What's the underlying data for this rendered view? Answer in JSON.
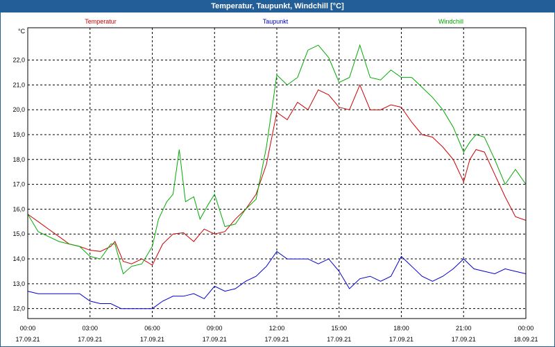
{
  "window": {
    "title": "Temperatur, Taupunkt, Windchill [°C]"
  },
  "chart_data": {
    "type": "line",
    "title": "Temperatur, Taupunkt, Windchill [°C]",
    "ylabel": "°C",
    "ylim": [
      11.6,
      23.3
    ],
    "xlim": [
      0,
      24
    ],
    "grid": true,
    "y_ticks": [
      "12,0",
      "13,0",
      "14,0",
      "15,0",
      "16,0",
      "17,0",
      "18,0",
      "19,0",
      "20,0",
      "21,0",
      "22,0"
    ],
    "x_ticks": [
      {
        "time": "00:00",
        "date": "17.09.21"
      },
      {
        "time": "03:00",
        "date": "17.09.21"
      },
      {
        "time": "06:00",
        "date": "17.09.21"
      },
      {
        "time": "09:00",
        "date": "17.09.21"
      },
      {
        "time": "12:00",
        "date": "17.09.21"
      },
      {
        "time": "15:00",
        "date": "17.09.21"
      },
      {
        "time": "18:00",
        "date": "17.09.21"
      },
      {
        "time": "21:00",
        "date": "17.09.21"
      },
      {
        "time": "00:00",
        "date": "18.09.21"
      }
    ],
    "series": [
      {
        "name": "Temperatur",
        "color": "#cc0000",
        "points": [
          [
            0,
            15.8
          ],
          [
            0.5,
            15.5
          ],
          [
            1,
            15.2
          ],
          [
            1.5,
            14.9
          ],
          [
            2,
            14.6
          ],
          [
            2.5,
            14.5
          ],
          [
            3,
            14.35
          ],
          [
            3.5,
            14.3
          ],
          [
            4,
            14.5
          ],
          [
            4.2,
            14.7
          ],
          [
            4.6,
            13.9
          ],
          [
            5,
            13.8
          ],
          [
            5.5,
            14.0
          ],
          [
            6,
            13.75
          ],
          [
            6.5,
            14.6
          ],
          [
            7,
            15.0
          ],
          [
            7.5,
            15.05
          ],
          [
            8,
            14.7
          ],
          [
            8.5,
            15.2
          ],
          [
            9,
            15.0
          ],
          [
            9.5,
            15.1
          ],
          [
            10,
            15.6
          ],
          [
            10.5,
            16.0
          ],
          [
            11,
            16.6
          ],
          [
            11.5,
            17.8
          ],
          [
            12,
            19.9
          ],
          [
            12.5,
            19.6
          ],
          [
            13,
            20.3
          ],
          [
            13.5,
            20.0
          ],
          [
            14,
            20.8
          ],
          [
            14.5,
            20.6
          ],
          [
            15,
            20.1
          ],
          [
            15.5,
            20.0
          ],
          [
            16,
            21.0
          ],
          [
            16.5,
            20.0
          ],
          [
            17,
            20.0
          ],
          [
            17.5,
            20.2
          ],
          [
            18,
            20.1
          ],
          [
            18.5,
            19.5
          ],
          [
            19,
            19.0
          ],
          [
            19.5,
            18.9
          ],
          [
            20,
            18.5
          ],
          [
            20.5,
            18.0
          ],
          [
            21,
            17.1
          ],
          [
            21.3,
            18.0
          ],
          [
            21.6,
            18.4
          ],
          [
            22,
            18.3
          ],
          [
            22.5,
            17.4
          ],
          [
            23,
            16.5
          ],
          [
            23.5,
            15.7
          ],
          [
            24,
            15.55
          ]
        ]
      },
      {
        "name": "Taupunkt",
        "color": "#0000cc",
        "points": [
          [
            0,
            12.7
          ],
          [
            0.5,
            12.6
          ],
          [
            1,
            12.6
          ],
          [
            1.5,
            12.6
          ],
          [
            2,
            12.6
          ],
          [
            2.5,
            12.6
          ],
          [
            3,
            12.3
          ],
          [
            3.5,
            12.2
          ],
          [
            4,
            12.2
          ],
          [
            4.5,
            12.0
          ],
          [
            5,
            12.0
          ],
          [
            6,
            12.0
          ],
          [
            6.5,
            12.3
          ],
          [
            7,
            12.5
          ],
          [
            7.5,
            12.5
          ],
          [
            8,
            12.6
          ],
          [
            8.5,
            12.4
          ],
          [
            9,
            12.9
          ],
          [
            9.5,
            12.7
          ],
          [
            10,
            12.8
          ],
          [
            10.5,
            13.1
          ],
          [
            11,
            13.3
          ],
          [
            11.5,
            13.7
          ],
          [
            12,
            14.3
          ],
          [
            12.5,
            14.0
          ],
          [
            13,
            14.0
          ],
          [
            13.5,
            14.0
          ],
          [
            14,
            13.8
          ],
          [
            14.5,
            14.0
          ],
          [
            15,
            13.5
          ],
          [
            15.5,
            12.8
          ],
          [
            16,
            13.2
          ],
          [
            16.5,
            13.3
          ],
          [
            17,
            13.1
          ],
          [
            17.5,
            13.3
          ],
          [
            18,
            14.1
          ],
          [
            18.5,
            13.7
          ],
          [
            19,
            13.3
          ],
          [
            19.5,
            13.1
          ],
          [
            20,
            13.3
          ],
          [
            20.5,
            13.6
          ],
          [
            21,
            14.0
          ],
          [
            21.5,
            13.6
          ],
          [
            22,
            13.5
          ],
          [
            22.5,
            13.4
          ],
          [
            23,
            13.6
          ],
          [
            23.5,
            13.5
          ],
          [
            24,
            13.4
          ]
        ]
      },
      {
        "name": "Windchill",
        "color": "#00aa00",
        "points": [
          [
            0,
            15.8
          ],
          [
            0.5,
            15.1
          ],
          [
            1,
            14.9
          ],
          [
            1.5,
            14.7
          ],
          [
            2,
            14.6
          ],
          [
            2.5,
            14.5
          ],
          [
            3,
            14.1
          ],
          [
            3.5,
            14.0
          ],
          [
            4,
            14.6
          ],
          [
            4.2,
            14.6
          ],
          [
            4.6,
            13.4
          ],
          [
            5,
            13.7
          ],
          [
            5.5,
            13.8
          ],
          [
            6,
            14.5
          ],
          [
            6.3,
            15.6
          ],
          [
            6.7,
            16.3
          ],
          [
            7,
            16.6
          ],
          [
            7.3,
            18.4
          ],
          [
            7.6,
            16.3
          ],
          [
            8,
            16.5
          ],
          [
            8.3,
            15.6
          ],
          [
            8.7,
            16.2
          ],
          [
            9,
            16.6
          ],
          [
            9.5,
            15.3
          ],
          [
            10,
            15.4
          ],
          [
            10.5,
            16.0
          ],
          [
            11,
            16.4
          ],
          [
            11.5,
            18.5
          ],
          [
            12,
            21.4
          ],
          [
            12.5,
            21.0
          ],
          [
            13,
            21.3
          ],
          [
            13.5,
            22.4
          ],
          [
            14,
            22.6
          ],
          [
            14.5,
            22.1
          ],
          [
            15,
            21.1
          ],
          [
            15.5,
            21.3
          ],
          [
            16,
            22.6
          ],
          [
            16.5,
            21.3
          ],
          [
            17,
            21.2
          ],
          [
            17.5,
            21.6
          ],
          [
            18,
            21.3
          ],
          [
            18.5,
            21.3
          ],
          [
            19,
            20.9
          ],
          [
            19.5,
            20.5
          ],
          [
            20,
            20.0
          ],
          [
            20.5,
            19.3
          ],
          [
            21,
            18.3
          ],
          [
            21.3,
            18.7
          ],
          [
            21.6,
            19.0
          ],
          [
            22,
            18.9
          ],
          [
            22.5,
            18.0
          ],
          [
            23,
            17.0
          ],
          [
            23.5,
            17.6
          ],
          [
            24,
            17.0
          ]
        ]
      }
    ]
  }
}
